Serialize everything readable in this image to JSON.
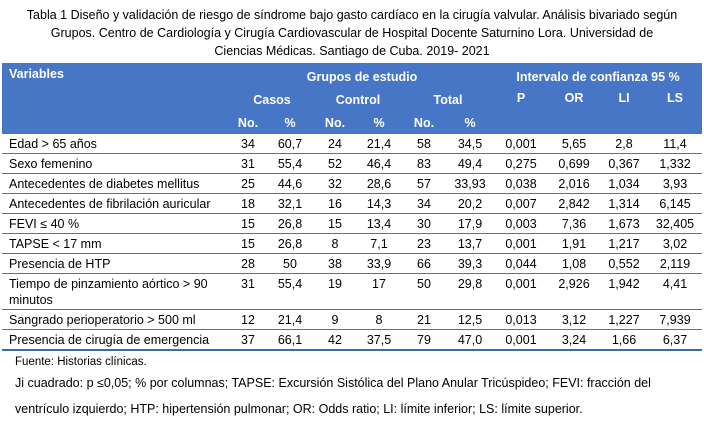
{
  "title": {
    "text": "Tabla 1 Diseño y validación de riesgo de síndrome bajo gasto cardíaco en la cirugía valvular. Análisis bivariado según Grupos. Centro de Cardiología y Cirugía Cardiovascular de Hospital Docente Saturnino Lora. Universidad de Ciencias Médicas. Santiago de Cuba. 2019- 2021"
  },
  "table": {
    "header": {
      "variables": "Variables",
      "grupos": "Grupos de estudio",
      "intervalo": "Intervalo de confianza 95 %",
      "groups": [
        "Casos",
        "Control",
        "Total"
      ],
      "stats": [
        "P",
        "OR",
        "LI",
        "LS"
      ],
      "sub": [
        "No.",
        "%",
        "No.",
        "%",
        "No.",
        "%"
      ]
    },
    "rows": [
      {
        "label": "Edad > 65 años",
        "values": [
          "34",
          "60,7",
          "24",
          "21,4",
          "58",
          "34,5",
          "0,001",
          "5,65",
          "2,8",
          "11,4"
        ]
      },
      {
        "label": "Sexo femenino",
        "values": [
          "31",
          "55,4",
          "52",
          "46,4",
          "83",
          "49,4",
          "0,275",
          "0,699",
          "0,367",
          "1,332"
        ]
      },
      {
        "label": "Antecedentes de diabetes mellitus",
        "values": [
          "25",
          "44,6",
          "32",
          "28,6",
          "57",
          "33,93",
          "0,038",
          "2,016",
          "1,034",
          "3,93"
        ]
      },
      {
        "label": "Antecedentes de fibrilación auricular",
        "values": [
          "18",
          "32,1",
          "16",
          "14,3",
          "34",
          "20,2",
          "0,007",
          "2,842",
          "1,314",
          "6,145"
        ]
      },
      {
        "label": "FEVI ≤ 40 %",
        "values": [
          "15",
          "26,8",
          "15",
          "13,4",
          "30",
          "17,9",
          "0,003",
          "7,36",
          "1,673",
          "32,405"
        ]
      },
      {
        "label": "TAPSE < 17 mm",
        "values": [
          "15",
          "26,8",
          "8",
          "7,1",
          "23",
          "13,7",
          "0,001",
          "1,91",
          "1,217",
          "3,02"
        ]
      },
      {
        "label": "Presencia de HTP",
        "values": [
          "28",
          "50",
          "38",
          "33,9",
          "66",
          "39,3",
          "0,044",
          "1,08",
          "0,552",
          "2,119"
        ]
      },
      {
        "label": "Tiempo de pinzamiento aórtico > 90 minutos",
        "values": [
          "31",
          "55,4",
          "19",
          "17",
          "50",
          "29,8",
          "0,001",
          "2,926",
          "1,942",
          "4,41"
        ]
      },
      {
        "label": "Sangrado perioperatorio > 500 ml",
        "values": [
          "12",
          "21,4",
          "9",
          "8",
          "21",
          "12,5",
          "0,013",
          "3,12",
          "1,227",
          "7,939"
        ]
      },
      {
        "label": "Presencia de cirugía de emergencia",
        "values": [
          "37",
          "66,1",
          "42",
          "37,5",
          "79",
          "47,0",
          "0,001",
          "3,24",
          "1,66",
          "6,37"
        ]
      }
    ]
  },
  "footer": {
    "fuente": "Fuente: Historias clínicas.",
    "notas": "Ji cuadrado: p ≤0,05; % por columnas; TAPSE: Excursión Sistólica del Plano Anular Tricúspideo; FEVI: fracción del ventrículo izquierdo; HTP: hipertensión pulmonar; OR: Odds ratio; LI: límite inferior; LS: límite superior."
  },
  "colors": {
    "header_bg": "#4776C6",
    "row_border": "#4472C4",
    "bottom_border": "#3E68B0",
    "header_text": "#FFFFFF",
    "body_text": "#000000"
  }
}
